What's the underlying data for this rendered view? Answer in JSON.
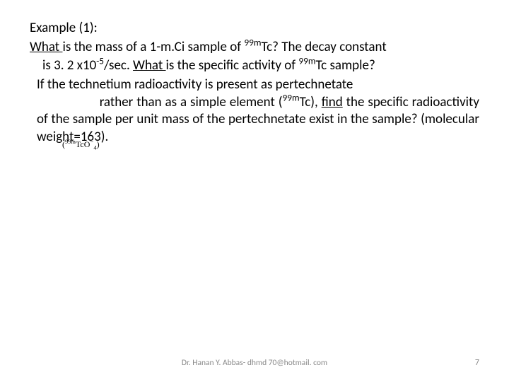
{
  "heading": "Example (1):",
  "q1": {
    "line1_pre": "What ",
    "line1_mid": "is the mass of a 1-m.Ci sample of ",
    "line1_sup": "99m",
    "line1_post": "Tc? The decay constant",
    "line2_pre": "is 3. 2 x10",
    "line2_sup1": "-5",
    "line2_mid": "/sec. ",
    "line2_u": "What ",
    "line2_post1": "is the specific activity of ",
    "line2_sup2": "99m",
    "line2_post2": "Tc sample?"
  },
  "q2": {
    "line1": "If the technetium radioactivity is present as pertechnetate",
    "rest_a": "                  rather than as a simple element (",
    "rest_sup": "99m",
    "rest_b": "Tc), ",
    "rest_find": "find",
    "rest_c": " the specific   radioactivity of the sample per unit mass of the pertechnetate exist in the sample? (molecular weight=163)."
  },
  "formula": {
    "open": "(",
    "sup1": "99m",
    "mid": "TcO",
    "sub_open": "",
    "sup_minus": "−",
    "close": ")",
    "sub4": "4"
  },
  "footer": {
    "text": "Dr. Hanan Y. Abbas- dhmd 70@hotmail. com",
    "page": "7"
  },
  "colors": {
    "text": "#000000",
    "footer": "#888888",
    "background": "#ffffff"
  },
  "fontsize": {
    "body": 19,
    "footer": 11.5,
    "formula": 12
  }
}
